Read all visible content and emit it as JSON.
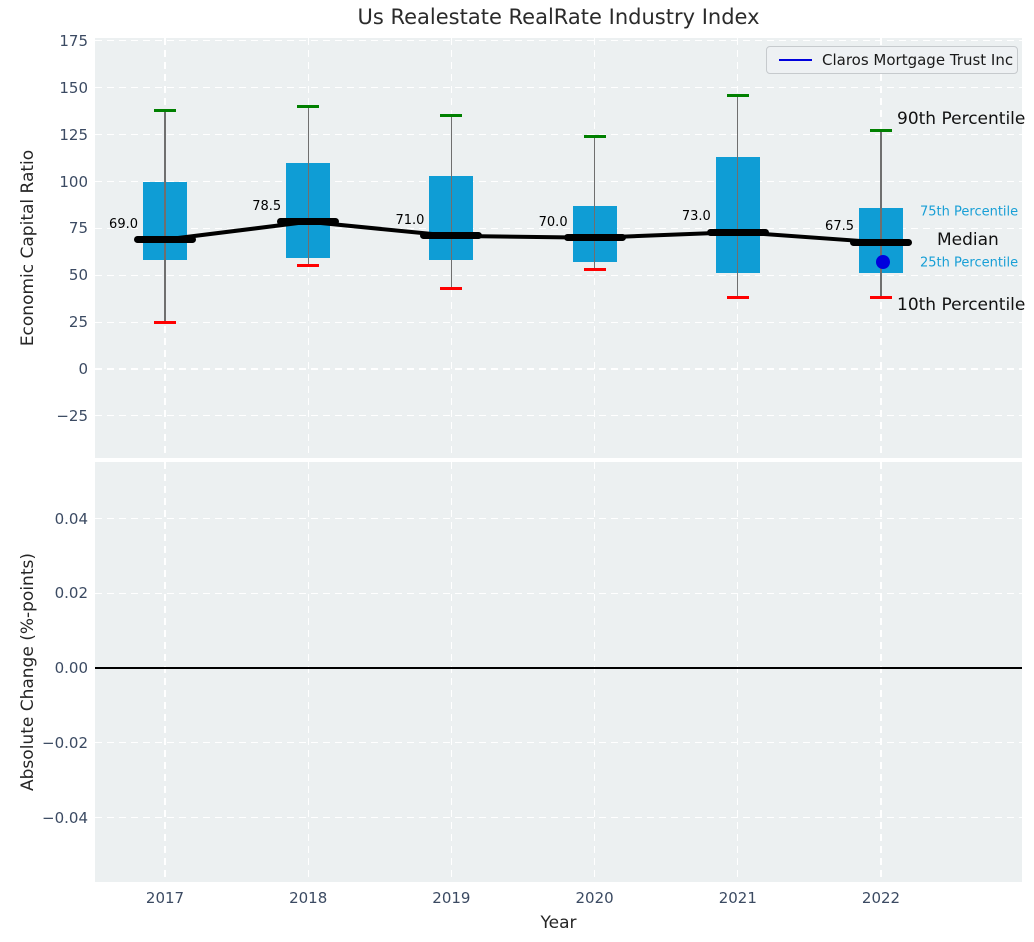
{
  "title": "Us Realestate RealRate Industry Index",
  "legend": {
    "label": "Claros Mortgage Trust Inc"
  },
  "annotations": {
    "p90": "90th Percentile",
    "p75": "75th Percentile",
    "median": "Median",
    "p25": "25th Percentile",
    "p10": "10th Percentile"
  },
  "colors": {
    "box_fill": "#0f9dd5",
    "cap_high": "#008000",
    "cap_low": "#ff0000",
    "whisker": "#6f6f6f",
    "median": "#000000",
    "company": "#0000dd",
    "percentile_label": "#189fd6",
    "plot_bg": "#ecf0f1",
    "tick_text": "#3b4a62"
  },
  "chart_data": [
    {
      "type": "box",
      "title": "Us Realestate RealRate Industry Index",
      "ylabel": "Economic Capital Ratio",
      "ylim": [
        -47.5,
        176.5
      ],
      "grid": true,
      "legend_position": "upper right",
      "legend_entries": [
        "Claros Mortgage Trust Inc"
      ],
      "yticks": [
        "175",
        "150",
        "125",
        "100",
        "75",
        "50",
        "25",
        "0",
        "−25"
      ],
      "ytick_values": [
        175,
        150,
        125,
        100,
        75,
        50,
        25,
        0,
        -25
      ],
      "categories": [
        "2017",
        "2018",
        "2019",
        "2020",
        "2021",
        "2022"
      ],
      "boxes": [
        {
          "year": "2017",
          "p10": 25,
          "p25": 58,
          "median": 69.0,
          "median_label": "69.0",
          "p75": 100,
          "p90": 138
        },
        {
          "year": "2018",
          "p10": 55,
          "p25": 59,
          "median": 78.5,
          "median_label": "78.5",
          "p75": 110,
          "p90": 140
        },
        {
          "year": "2019",
          "p10": 43,
          "p25": 58,
          "median": 71.0,
          "median_label": "71.0",
          "p75": 103,
          "p90": 135
        },
        {
          "year": "2020",
          "p10": 53,
          "p25": 57,
          "median": 70.0,
          "median_label": "70.0",
          "p75": 87,
          "p90": 124
        },
        {
          "year": "2021",
          "p10": 38,
          "p25": 51,
          "median": 73.0,
          "median_label": "73.0",
          "p75": 113,
          "p90": 146
        },
        {
          "year": "2022",
          "p10": 38,
          "p25": 51,
          "median": 67.5,
          "median_label": "67.5",
          "p75": 86,
          "p90": 127
        }
      ],
      "company_point": {
        "year": "2022",
        "value": 57,
        "series": "Claros Mortgage Trust Inc"
      }
    },
    {
      "type": "line",
      "ylabel": "Absolute Change (%-points)",
      "xlabel": "Year",
      "ylim": [
        -0.055,
        0.055
      ],
      "grid": true,
      "yticks": [
        "0.04",
        "0.02",
        "0.00",
        "−0.02",
        "−0.04"
      ],
      "ytick_values": [
        0.04,
        0.02,
        0.0,
        -0.02,
        -0.04
      ],
      "categories": [
        "2017",
        "2018",
        "2019",
        "2020",
        "2021",
        "2022"
      ],
      "zero_line": 0.0,
      "series": []
    }
  ]
}
